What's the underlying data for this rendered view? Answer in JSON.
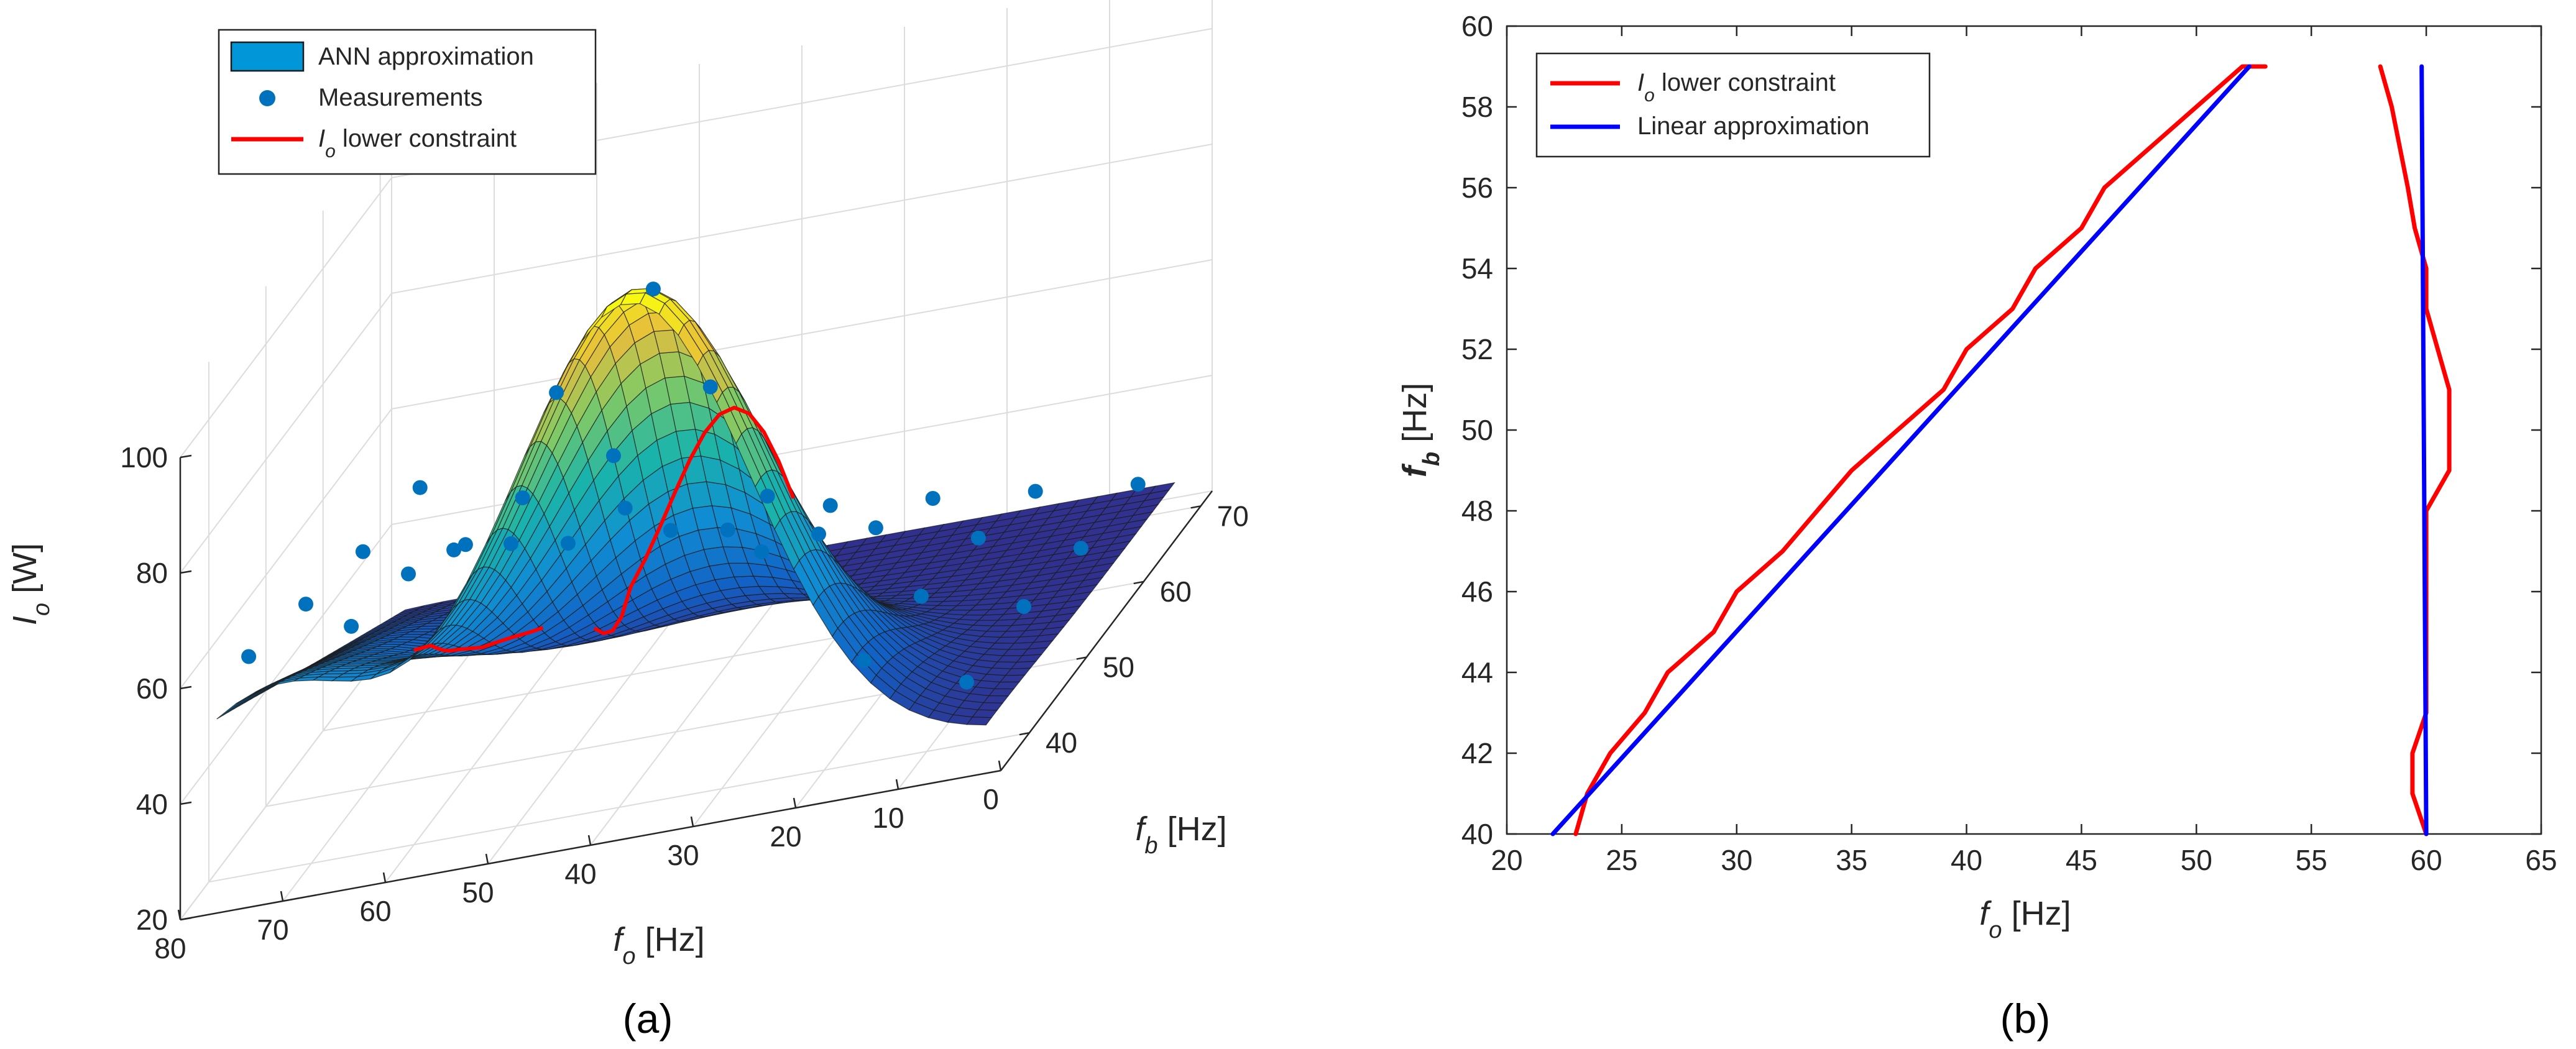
{
  "figure": {
    "caption_a": "(a)",
    "caption_b": "(b)"
  },
  "colors": {
    "red": "#ff0000",
    "blue": "#0000ff",
    "marker": "#0072bd",
    "legend_patch": "#0096d8"
  },
  "chart_data": [
    {
      "type": "surface3d",
      "title": "",
      "xlabel_sym": "f",
      "xlabel_sub": "o",
      "xlabel_unit": "[Hz]",
      "ylabel_sym": "f",
      "ylabel_sub": "b",
      "ylabel_unit": "[Hz]",
      "zlabel_sym": "I",
      "zlabel_sub": "o",
      "zlabel_unit": "[W]",
      "xlim": [
        0,
        80
      ],
      "ylim": [
        35,
        72
      ],
      "zlim": [
        20,
        100
      ],
      "xticks": [
        "80",
        "70",
        "60",
        "50",
        "40",
        "30",
        "20",
        "10",
        "0"
      ],
      "yticks": [
        "40",
        "50",
        "60",
        "70"
      ],
      "zticks": [
        "20",
        "40",
        "60",
        "80",
        "100"
      ],
      "legend": {
        "position": "top-left",
        "entries": [
          {
            "label": "ANN approximation",
            "kind": "patch"
          },
          {
            "label": "Measurements",
            "kind": "marker"
          },
          {
            "label_sym": "I",
            "label_sub": "o",
            "label_rest": " lower constraint",
            "kind": "line"
          }
        ]
      },
      "surface_model": "I = 26 + 86*exp(-((fo-37)/17)^2 - ((fb-37)/12)^2) + 30*exp(-((fo-72)/15)^2)*(1-(fb-35)/37)",
      "measurements": [
        {
          "fo": 5,
          "fb": 38,
          "I": 33
        },
        {
          "fo": 5,
          "fb": 48,
          "I": 33
        },
        {
          "fo": 5,
          "fb": 58,
          "I": 30
        },
        {
          "fo": 5,
          "fb": 68,
          "I": 28
        },
        {
          "fo": 15,
          "fb": 38,
          "I": 40
        },
        {
          "fo": 15,
          "fb": 48,
          "I": 38
        },
        {
          "fo": 15,
          "fb": 58,
          "I": 35
        },
        {
          "fo": 15,
          "fb": 68,
          "I": 30
        },
        {
          "fo": 25,
          "fb": 38,
          "I": 62
        },
        {
          "fo": 25,
          "fb": 48,
          "I": 52
        },
        {
          "fo": 25,
          "fb": 58,
          "I": 40
        },
        {
          "fo": 25,
          "fb": 68,
          "I": 32
        },
        {
          "fo": 35,
          "fb": 37,
          "I": 112
        },
        {
          "fo": 35,
          "fb": 47,
          "I": 82
        },
        {
          "fo": 35,
          "fb": 57,
          "I": 50
        },
        {
          "fo": 35,
          "fb": 68,
          "I": 34
        },
        {
          "fo": 45,
          "fb": 38,
          "I": 96
        },
        {
          "fo": 45,
          "fb": 48,
          "I": 72
        },
        {
          "fo": 45,
          "fb": 58,
          "I": 46
        },
        {
          "fo": 45,
          "fb": 68,
          "I": 33
        },
        {
          "fo": 55,
          "fb": 38,
          "I": 72
        },
        {
          "fo": 55,
          "fb": 48,
          "I": 60
        },
        {
          "fo": 55,
          "fb": 58,
          "I": 47
        },
        {
          "fo": 55,
          "fb": 68,
          "I": 40
        },
        {
          "fo": 65,
          "fb": 38,
          "I": 62
        },
        {
          "fo": 65,
          "fb": 48,
          "I": 58
        },
        {
          "fo": 65,
          "fb": 58,
          "I": 50
        },
        {
          "fo": 65,
          "fb": 68,
          "I": 45
        },
        {
          "fo": 75,
          "fb": 38,
          "I": 60
        },
        {
          "fo": 75,
          "fb": 48,
          "I": 56
        },
        {
          "fo": 75,
          "fb": 58,
          "I": 52
        },
        {
          "fo": 75,
          "fb": 68,
          "I": 50
        }
      ],
      "constraint_curves": [
        {
          "name": "branch-1",
          "fo": [
            23,
            25,
            27,
            29,
            31,
            33,
            35,
            37,
            39,
            41,
            43,
            45,
            47,
            49,
            51,
            53
          ],
          "fb": [
            40,
            41,
            42,
            43,
            44,
            45,
            46,
            47,
            48,
            49,
            50,
            51,
            53,
            55,
            57,
            59
          ]
        },
        {
          "name": "branch-2",
          "fo": [
            60,
            59.5,
            60,
            60.5,
            61,
            61,
            60,
            60,
            59.5,
            58.5,
            58
          ],
          "fb": [
            40,
            42,
            44,
            46,
            48,
            50,
            52,
            54,
            56,
            58,
            59
          ]
        }
      ]
    },
    {
      "type": "line",
      "title": "",
      "xlabel_sym": "f",
      "xlabel_sub": "o",
      "xlabel_unit": "[Hz]",
      "ylabel_sym": "f",
      "ylabel_sub": "b",
      "ylabel_unit": "[Hz]",
      "xlim": [
        20,
        65
      ],
      "ylim": [
        40,
        60
      ],
      "xticks": [
        "20",
        "25",
        "30",
        "35",
        "40",
        "45",
        "50",
        "55",
        "60",
        "65"
      ],
      "yticks": [
        "40",
        "42",
        "44",
        "46",
        "48",
        "50",
        "52",
        "54",
        "56",
        "58",
        "60"
      ],
      "legend": {
        "position": "top-left",
        "entries": [
          {
            "label_sym": "I",
            "label_sub": "o",
            "label_rest": " lower constraint",
            "color_key": "red"
          },
          {
            "label": "Linear approximation",
            "color_key": "blue"
          }
        ]
      },
      "series": [
        {
          "name": "Io lower constraint",
          "color_key": "red",
          "segments": [
            {
              "x": [
                23,
                23.5,
                24.5,
                26,
                27,
                28,
                29,
                30,
                31,
                32,
                33.5,
                35,
                37,
                38,
                39,
                40,
                41,
                42,
                43,
                44,
                45,
                46,
                47,
                48,
                50,
                51,
                52,
                53
              ],
              "y": [
                40,
                41,
                42,
                43,
                44,
                44.5,
                45,
                46,
                46.5,
                47,
                48,
                49,
                50,
                50.5,
                51,
                52,
                52.5,
                53,
                54,
                54.5,
                55,
                56,
                56.5,
                57,
                58,
                58.5,
                59,
                59
              ]
            },
            {
              "x": [
                60,
                59.4,
                59.4,
                60,
                60,
                60,
                60,
                60,
                61,
                61,
                60,
                60,
                59.5,
                59.2,
                58.5,
                58
              ],
              "y": [
                40,
                41,
                42,
                43,
                44,
                46,
                47,
                48,
                49,
                51,
                53,
                54,
                55,
                56,
                58,
                59
              ]
            }
          ]
        },
        {
          "name": "Linear approximation",
          "color_key": "blue",
          "segments": [
            {
              "x": [
                22,
                52.3
              ],
              "y": [
                40,
                59
              ]
            },
            {
              "x": [
                60,
                59.8
              ],
              "y": [
                40,
                59
              ]
            }
          ]
        }
      ]
    }
  ]
}
